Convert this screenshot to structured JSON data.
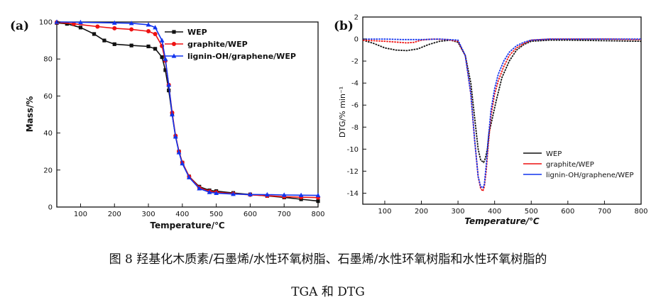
{
  "caption": {
    "line1": "图 8  羟基化木质素/石墨烯/水性环氧树脂、石墨烯/水性环氧树脂和水性环氧树脂的",
    "line2": "TGA 和 DTG"
  },
  "series_colors": {
    "WEP": "#111111",
    "graphite/WEP": "#ee1111",
    "lignin-OH/graphene/WEP": "#1133ee"
  },
  "chart_data": [
    {
      "panel": "(a)",
      "type": "line",
      "xlabel": "Temperature/℃",
      "ylabel": "Mass/%",
      "xlim": [
        30,
        800
      ],
      "ylim": [
        0,
        100
      ],
      "xticks": [
        100,
        200,
        300,
        400,
        500,
        600,
        700,
        800
      ],
      "yticks": [
        0,
        20,
        40,
        60,
        80,
        100
      ],
      "legend": "top-right",
      "series": [
        {
          "name": "WEP",
          "marker": "square",
          "x": [
            30,
            60,
            100,
            140,
            170,
            200,
            250,
            300,
            320,
            340,
            350,
            360,
            370,
            380,
            390,
            400,
            420,
            450,
            480,
            500,
            550,
            600,
            650,
            700,
            750,
            800
          ],
          "y": [
            99.5,
            99,
            97,
            93.5,
            90,
            88,
            87.3,
            86.8,
            85.5,
            81,
            74,
            63,
            50,
            38,
            30,
            24,
            16.5,
            11,
            9,
            8.6,
            7.6,
            6.8,
            6,
            5.2,
            4.2,
            3.2
          ]
        },
        {
          "name": "graphite/WEP",
          "marker": "circle",
          "x": [
            30,
            80,
            150,
            200,
            250,
            300,
            320,
            340,
            350,
            360,
            370,
            380,
            390,
            400,
            420,
            450,
            480,
            500,
            550,
            600,
            650,
            700,
            750,
            800
          ],
          "y": [
            99.8,
            99,
            97.5,
            96.6,
            96,
            95,
            93.5,
            87,
            79,
            66,
            51,
            38.5,
            30,
            24,
            16.5,
            10.5,
            8.5,
            8,
            7.2,
            6.6,
            6.1,
            5.6,
            5.3,
            5.1
          ]
        },
        {
          "name": "lignin-OH/graphene/WEP",
          "marker": "triangle",
          "x": [
            30,
            100,
            200,
            250,
            300,
            320,
            340,
            350,
            360,
            370,
            380,
            390,
            400,
            420,
            450,
            480,
            500,
            550,
            600,
            650,
            700,
            750,
            800
          ],
          "y": [
            100,
            99.8,
            99.5,
            99.3,
            98.5,
            97,
            90,
            80,
            66,
            50,
            38,
            29.5,
            23.5,
            16,
            10,
            8,
            7.5,
            7,
            6.8,
            6.7,
            6.5,
            6.4,
            6.3
          ]
        }
      ]
    },
    {
      "panel": "(b)",
      "type": "line",
      "xlabel": "Temperature/℃",
      "ylabel": "DTG/% min⁻¹",
      "xlim": [
        40,
        800
      ],
      "ylim": [
        -15,
        2
      ],
      "xticks": [
        100,
        200,
        300,
        400,
        500,
        600,
        700,
        800
      ],
      "yticks": [
        -14,
        -12,
        -10,
        -8,
        -6,
        -4,
        -2,
        0,
        2
      ],
      "legend": "bottom-right",
      "series": [
        {
          "name": "WEP",
          "x": [
            40,
            70,
            100,
            130,
            160,
            190,
            220,
            250,
            280,
            300,
            320,
            335,
            345,
            355,
            362,
            370,
            375,
            380,
            385,
            395,
            405,
            420,
            440,
            460,
            480,
            500,
            550,
            600,
            700,
            800
          ],
          "y": [
            -0.1,
            -0.4,
            -0.8,
            -1.0,
            -1.05,
            -0.9,
            -0.5,
            -0.2,
            -0.1,
            -0.3,
            -1.5,
            -4,
            -7,
            -10,
            -11,
            -11.2,
            -10.8,
            -10,
            -8.5,
            -7,
            -5.5,
            -3.5,
            -2,
            -1,
            -0.5,
            -0.2,
            -0.1,
            -0.1,
            -0.15,
            -0.2
          ]
        },
        {
          "name": "graphite/WEP",
          "x": [
            40,
            100,
            140,
            160,
            180,
            200,
            230,
            270,
            300,
            320,
            335,
            345,
            355,
            362,
            368,
            372,
            377,
            383,
            390,
            400,
            410,
            425,
            440,
            460,
            480,
            500,
            550,
            600,
            700,
            800
          ],
          "y": [
            -0.1,
            -0.2,
            -0.3,
            -0.35,
            -0.3,
            -0.1,
            0,
            -0.05,
            -0.2,
            -1.5,
            -5,
            -9,
            -12.5,
            -13.6,
            -13.8,
            -13.4,
            -12,
            -9.5,
            -7,
            -5,
            -3.8,
            -2.5,
            -1.5,
            -0.8,
            -0.4,
            -0.1,
            0,
            0,
            0,
            -0.05
          ]
        },
        {
          "name": "lignin-OH/graphene/WEP",
          "x": [
            40,
            100,
            150,
            200,
            250,
            300,
            320,
            335,
            345,
            355,
            362,
            368,
            372,
            377,
            383,
            390,
            400,
            410,
            425,
            440,
            460,
            480,
            500,
            550,
            600,
            700,
            800
          ],
          "y": [
            0,
            0,
            -0.05,
            -0.05,
            0,
            -0.1,
            -1.5,
            -5,
            -9,
            -12.5,
            -13.4,
            -13.5,
            -13.2,
            -11.5,
            -9,
            -6.5,
            -4.5,
            -3.2,
            -2,
            -1.2,
            -0.6,
            -0.3,
            -0.1,
            0,
            0,
            0,
            0
          ]
        }
      ]
    }
  ]
}
